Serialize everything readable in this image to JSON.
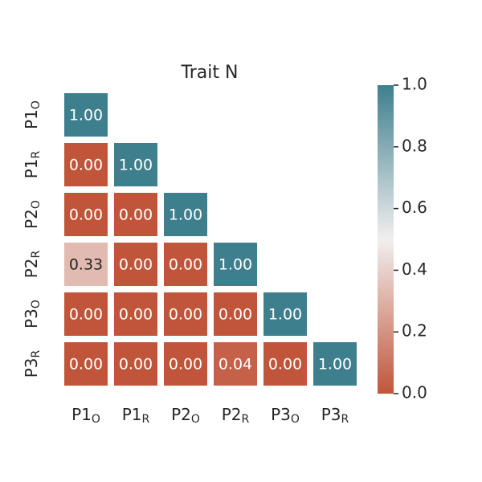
{
  "chart_data": {
    "type": "heatmap",
    "title": "Trait N",
    "x_categories": [
      {
        "text": "P1",
        "sub": "O"
      },
      {
        "text": "P1",
        "sub": "R"
      },
      {
        "text": "P2",
        "sub": "O"
      },
      {
        "text": "P2",
        "sub": "R"
      },
      {
        "text": "P3",
        "sub": "O"
      },
      {
        "text": "P3",
        "sub": "R"
      }
    ],
    "y_categories": [
      {
        "text": "P1",
        "sub": "O"
      },
      {
        "text": "P1",
        "sub": "R"
      },
      {
        "text": "P2",
        "sub": "O"
      },
      {
        "text": "P2",
        "sub": "R"
      },
      {
        "text": "P3",
        "sub": "O"
      },
      {
        "text": "P3",
        "sub": "R"
      }
    ],
    "values": [
      [
        1,
        null,
        null,
        null,
        null,
        null
      ],
      [
        0,
        1,
        null,
        null,
        null,
        null
      ],
      [
        0,
        0,
        1,
        null,
        null,
        null
      ],
      [
        0.33,
        0,
        0,
        1,
        null,
        null
      ],
      [
        0,
        0,
        0,
        0,
        1,
        null
      ],
      [
        0,
        0,
        0,
        0.04,
        0,
        1
      ]
    ],
    "value_labels": [
      [
        "1.00",
        null,
        null,
        null,
        null,
        null
      ],
      [
        "0.00",
        "1.00",
        null,
        null,
        null,
        null
      ],
      [
        "0.00",
        "0.00",
        "1.00",
        null,
        null,
        null
      ],
      [
        "0.33",
        "0.00",
        "0.00",
        "1.00",
        null,
        null
      ],
      [
        "0.00",
        "0.00",
        "0.00",
        "0.00",
        "1.00",
        null
      ],
      [
        "0.00",
        "0.00",
        "0.00",
        "0.04",
        "0.00",
        "1.00"
      ]
    ],
    "colormap": [
      "#c1553a",
      "#f1efef",
      "#3e7f8e"
    ],
    "clim": [
      0,
      1
    ],
    "cticks": [
      {
        "value": 0,
        "label": "0.0"
      },
      {
        "value": 0.2,
        "label": "0.2"
      },
      {
        "value": 0.4,
        "label": "0.4"
      },
      {
        "value": 0.6,
        "label": "0.6"
      },
      {
        "value": 0.8,
        "label": "0.8"
      },
      {
        "value": 1,
        "label": "1.0"
      }
    ]
  }
}
